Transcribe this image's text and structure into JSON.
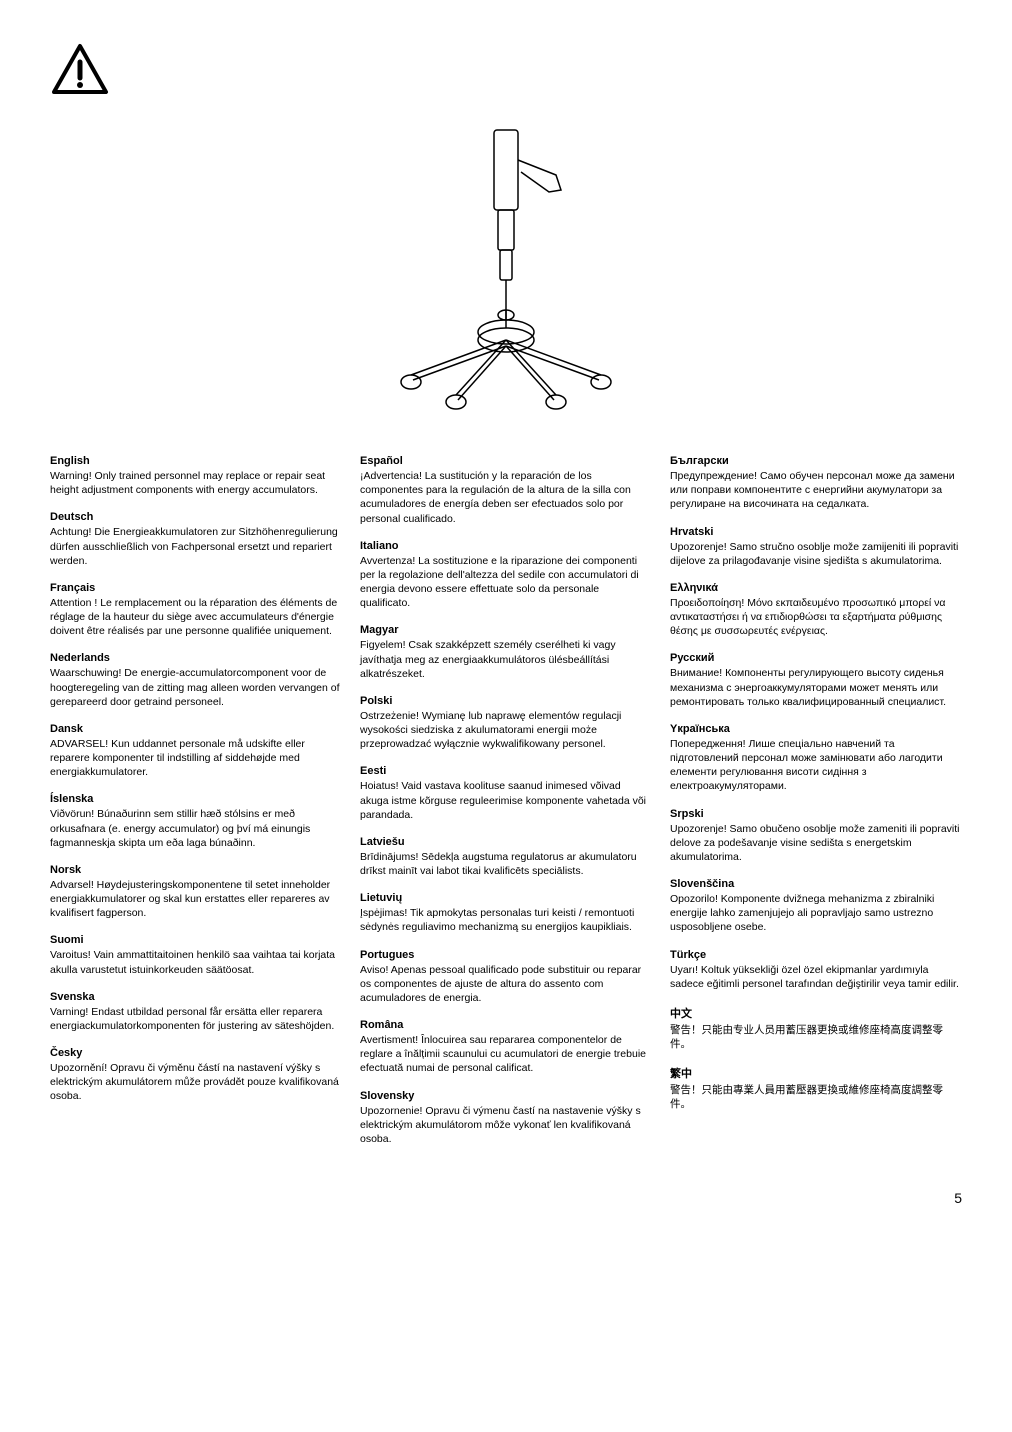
{
  "page_number": "5",
  "columns": [
    [
      {
        "lang": "English",
        "text": "Warning! Only trained personnel may replace or repair seat height adjustment components with energy accumulators."
      },
      {
        "lang": "Deutsch",
        "text": "Achtung! Die Energieakkumulatoren zur Sitzhöhenregulierung dürfen ausschließlich von Fachpersonal ersetzt und repariert werden."
      },
      {
        "lang": "Français",
        "text": "Attention ! Le remplacement ou la réparation des éléments de réglage de la hauteur du siège avec accumulateurs d'énergie doivent être réalisés par une personne qualifiée uniquement."
      },
      {
        "lang": "Nederlands",
        "text": "Waarschuwing! De energie-accumulatorcomponent voor de hoogteregeling van de zitting mag alleen worden vervangen of gerepareerd door getraind personeel."
      },
      {
        "lang": "Dansk",
        "text": "ADVARSEL! Kun uddannet personale må udskifte eller reparere komponenter til indstilling af siddehøjde med energiakkumulatorer."
      },
      {
        "lang": "Íslenska",
        "text": "Viðvörun! Búnaðurinn sem stillir hæð stólsins er með orkusafnara (e. energy accumulator) og því má einungis fagmanneskja skipta um eða laga búnaðinn."
      },
      {
        "lang": "Norsk",
        "text": "Advarsel! Høydejusteringskomponentene til setet inneholder energiakkumulatorer og skal kun erstattes eller repareres av kvalifisert fagperson."
      },
      {
        "lang": "Suomi",
        "text": "Varoitus! Vain ammattitaitoinen henkilö saa vaihtaa tai korjata akulla varustetut istuinkorkeuden säätöosat."
      },
      {
        "lang": "Svenska",
        "text": "Varning! Endast utbildad personal får ersätta eller reparera energiackumulatorkomponenten för justering av säteshöjden."
      },
      {
        "lang": "Česky",
        "text": "Upozornění! Opravu či výměnu částí na nastavení výšky s elektrickým akumulátorem může provádět pouze kvalifikovaná osoba."
      }
    ],
    [
      {
        "lang": "Español",
        "text": "¡Advertencia! La sustitución y la reparación de los componentes para la regulación de la altura de la silla con acumuladores de energía deben ser efectuados solo por personal cualificado."
      },
      {
        "lang": "Italiano",
        "text": "Avvertenza! La sostituzione e la riparazione dei componenti per la regolazione dell'altezza del sedile con accumulatori di energia devono essere effettuate solo da personale qualificato."
      },
      {
        "lang": "Magyar",
        "text": "Figyelem! Csak szakképzett személy cserélheti ki vagy javíthatja meg az energiaakkumulátoros ülésbeállítási alkatrészeket."
      },
      {
        "lang": "Polski",
        "text": "Ostrzeżenie! Wymianę lub naprawę elementów regulacji wysokości siedziska z akulumatorami energii może przeprowadzać wyłącznie wykwalifikowany personel."
      },
      {
        "lang": "Eesti",
        "text": "Hoiatus! Vaid vastava koolituse saanud inimesed võivad akuga istme kõrguse reguleerimise komponente vahetada või parandada."
      },
      {
        "lang": "Latviešu",
        "text": "Brīdinājums! Sēdekļa augstuma regulatorus ar akumulatoru drīkst mainīt vai labot tikai kvalificēts speciālists."
      },
      {
        "lang": "Lietuvių",
        "text": "Įspėjimas! Tik apmokytas personalas turi keisti / remontuoti sėdynės reguliavimo mechanizmą su energijos kaupikliais."
      },
      {
        "lang": "Portugues",
        "text": "Aviso! Apenas pessoal qualificado pode substituir ou reparar os componentes de ajuste de altura do assento com acumuladores de energia."
      },
      {
        "lang": "Româna",
        "text": "Avertisment! Înlocuirea sau repararea componentelor de reglare a înălțimii scaunului cu acumulatori de energie trebuie efectuată numai de personal calificat."
      },
      {
        "lang": "Slovensky",
        "text": "Upozornenie! Opravu či výmenu častí na nastavenie výšky s elektrickým akumulátorom môže vykonať len kvalifikovaná osoba."
      }
    ],
    [
      {
        "lang": "Български",
        "text": "Предупреждение! Само обучен персонал може да замени или поправи компонентите с енергийни акумулатори за регулиране на височината на седалката."
      },
      {
        "lang": "Hrvatski",
        "text": "Upozorenje! Samo stručno osoblje može zamijeniti ili popraviti dijelove za prilagođavanje visine sjedišta s akumulatorima."
      },
      {
        "lang": "Ελληνικά",
        "text": "Προειδοποίηση! Μόνο εκπαιδευμένο προσωπικό μπορεί να αντικαταστήσει ή να επιδιορθώσει τα εξαρτήματα ρύθμισης θέσης με συσσωρευτές ενέργειας."
      },
      {
        "lang": "Русский",
        "text": "Внимание! Компоненты регулирующего высоту сиденья механизма с энергоаккумуляторами может менять или ремонтировать только квалифицированный специалист."
      },
      {
        "lang": "Yкраїнська",
        "text": "Попередження! Лише спеціально навчений та підготовлений персонал може замінювати або лагодити елементи регулювання висоти сидіння з електроакумуляторами."
      },
      {
        "lang": "Srpski",
        "text": "Upozorenje! Samo obučeno osoblje može zameniti ili popraviti delove za podešavanje visine sedišta s energetskim akumulatorima."
      },
      {
        "lang": "Slovenščina",
        "text": "Opozorilo! Komponente dvižnega mehanizma z zbiralniki energije lahko zamenjujejo ali popravljajo samo ustrezno usposobljene osebe."
      },
      {
        "lang": "Türkçe",
        "text": "Uyarı! Koltuk yüksekliği özel özel ekipmanlar yardımıyla sadece eğitimli personel tarafından değiştirilir veya tamir edilir."
      },
      {
        "lang": "中文",
        "text": "警告！只能由专业人员用蓄压器更换或维修座椅高度调整零件。"
      },
      {
        "lang": "繁中",
        "text": "警告！只能由專業人員用蓄壓器更換或維修座椅高度調整零件。"
      }
    ]
  ]
}
